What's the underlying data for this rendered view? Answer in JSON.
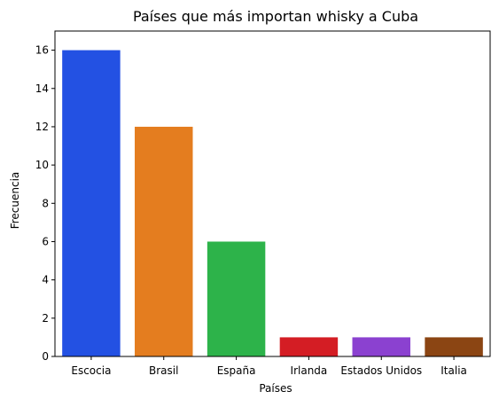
{
  "chart_data": {
    "type": "bar",
    "title": "Países que más importan whisky a Cuba",
    "xlabel": "Países",
    "ylabel": "Frecuencia",
    "categories": [
      "Escocia",
      "Brasil",
      "España",
      "Irlanda",
      "Estados Unidos",
      "Italia"
    ],
    "values": [
      16,
      12,
      6,
      1,
      1,
      1
    ],
    "colors": [
      "#2351e3",
      "#e47d1f",
      "#2db34a",
      "#d41d24",
      "#8b41d0",
      "#8b4513"
    ],
    "ylim": [
      0,
      17
    ],
    "yticks": [
      0,
      2,
      4,
      6,
      8,
      10,
      12,
      14,
      16
    ],
    "grid": false,
    "legend": "none"
  }
}
